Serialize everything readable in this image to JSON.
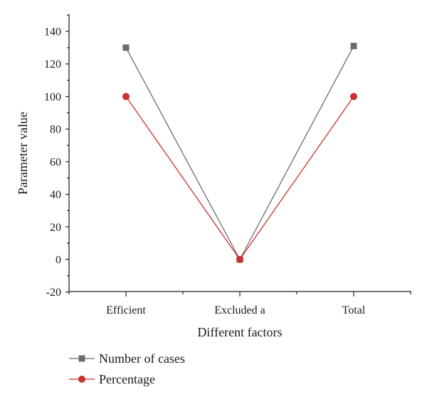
{
  "chart_data": {
    "type": "line",
    "categories": [
      "Efficient",
      "Excluded a",
      "Total"
    ],
    "xlabel": "Different factors",
    "ylabel": "Parameter value",
    "ylim": [
      -20,
      150
    ],
    "yticks": [
      -20,
      0,
      20,
      40,
      60,
      80,
      100,
      120,
      140
    ],
    "grid": false,
    "legend_position": "bottom-left",
    "series": [
      {
        "name": "Number of cases",
        "values": [
          130,
          0,
          131
        ],
        "color": "#6b6b6b",
        "marker": "square"
      },
      {
        "name": "Percentage",
        "values": [
          100,
          0,
          100
        ],
        "color": "#c9302c",
        "marker": "circle"
      }
    ]
  }
}
